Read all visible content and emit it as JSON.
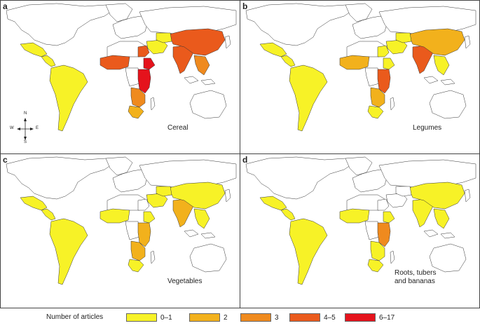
{
  "legend": {
    "title": "Number of articles",
    "items": [
      {
        "label": "0–1",
        "color": "#f7f227"
      },
      {
        "label": "2",
        "color": "#f2b11c"
      },
      {
        "label": "3",
        "color": "#ef8a1e"
      },
      {
        "label": "4–5",
        "color": "#ea5a1c"
      },
      {
        "label": "6–17",
        "color": "#e5131c"
      }
    ]
  },
  "compass": {
    "n": "N",
    "s": "S",
    "e": "E",
    "w": "W"
  },
  "panels": [
    {
      "letter": "a",
      "label": "Cereal",
      "regions": {
        "mexico": "#f7f227",
        "central_america": "#f7f227",
        "south_america": "#f7f227",
        "west_africa": "#ea5a1c",
        "sahel": "#ea5a1c",
        "ethiopia": "#e5131c",
        "east_africa": "#e5131c",
        "southern_africa": "#ef8a1e",
        "south_africa": "#f2b11c",
        "middle_east": "#f7f227",
        "india": "#ea5a1c",
        "china": "#ea5a1c",
        "southeast_asia": "#ef8a1e",
        "central_asia": "#f7f227"
      }
    },
    {
      "letter": "b",
      "label": "Legumes",
      "regions": {
        "mexico": "#f7f227",
        "central_america": "#f7f227",
        "south_america": "#f7f227",
        "west_africa": "#f2b11c",
        "sahel": "#f7f227",
        "ethiopia": "#f7f227",
        "east_africa": "#ea5a1c",
        "southern_africa": "#f2b11c",
        "south_africa": "#f7f227",
        "middle_east": "#f7f227",
        "india": "#ea5a1c",
        "china": "#f2b11c",
        "southeast_asia": "#f7f227",
        "central_asia": "#f7f227"
      }
    },
    {
      "letter": "c",
      "label": "Vegetables",
      "regions": {
        "mexico": "#f7f227",
        "central_america": "#f7f227",
        "south_america": "#f7f227",
        "west_africa": "#f7f227",
        "sahel": "#ffffff",
        "ethiopia": "#f7f227",
        "east_africa": "#f2b11c",
        "southern_africa": "#f2b11c",
        "south_africa": "#f7f227",
        "middle_east": "#f7f227",
        "india": "#f2b11c",
        "china": "#f7f227",
        "southeast_asia": "#f7f227",
        "central_asia": "#f7f227"
      }
    },
    {
      "letter": "d",
      "label": "Roots, tubers\nand bananas",
      "regions": {
        "mexico": "#f7f227",
        "central_america": "#f7f227",
        "south_america": "#f7f227",
        "west_africa": "#f7f227",
        "sahel": "#ffffff",
        "ethiopia": "#f7f227",
        "east_africa": "#ef8a1e",
        "southern_africa": "#f7f227",
        "south_africa": "#f7f227",
        "middle_east": "#ffffff",
        "india": "#f7f227",
        "china": "#f7f227",
        "southeast_asia": "#f7f227",
        "central_asia": "#ffffff"
      }
    }
  ]
}
